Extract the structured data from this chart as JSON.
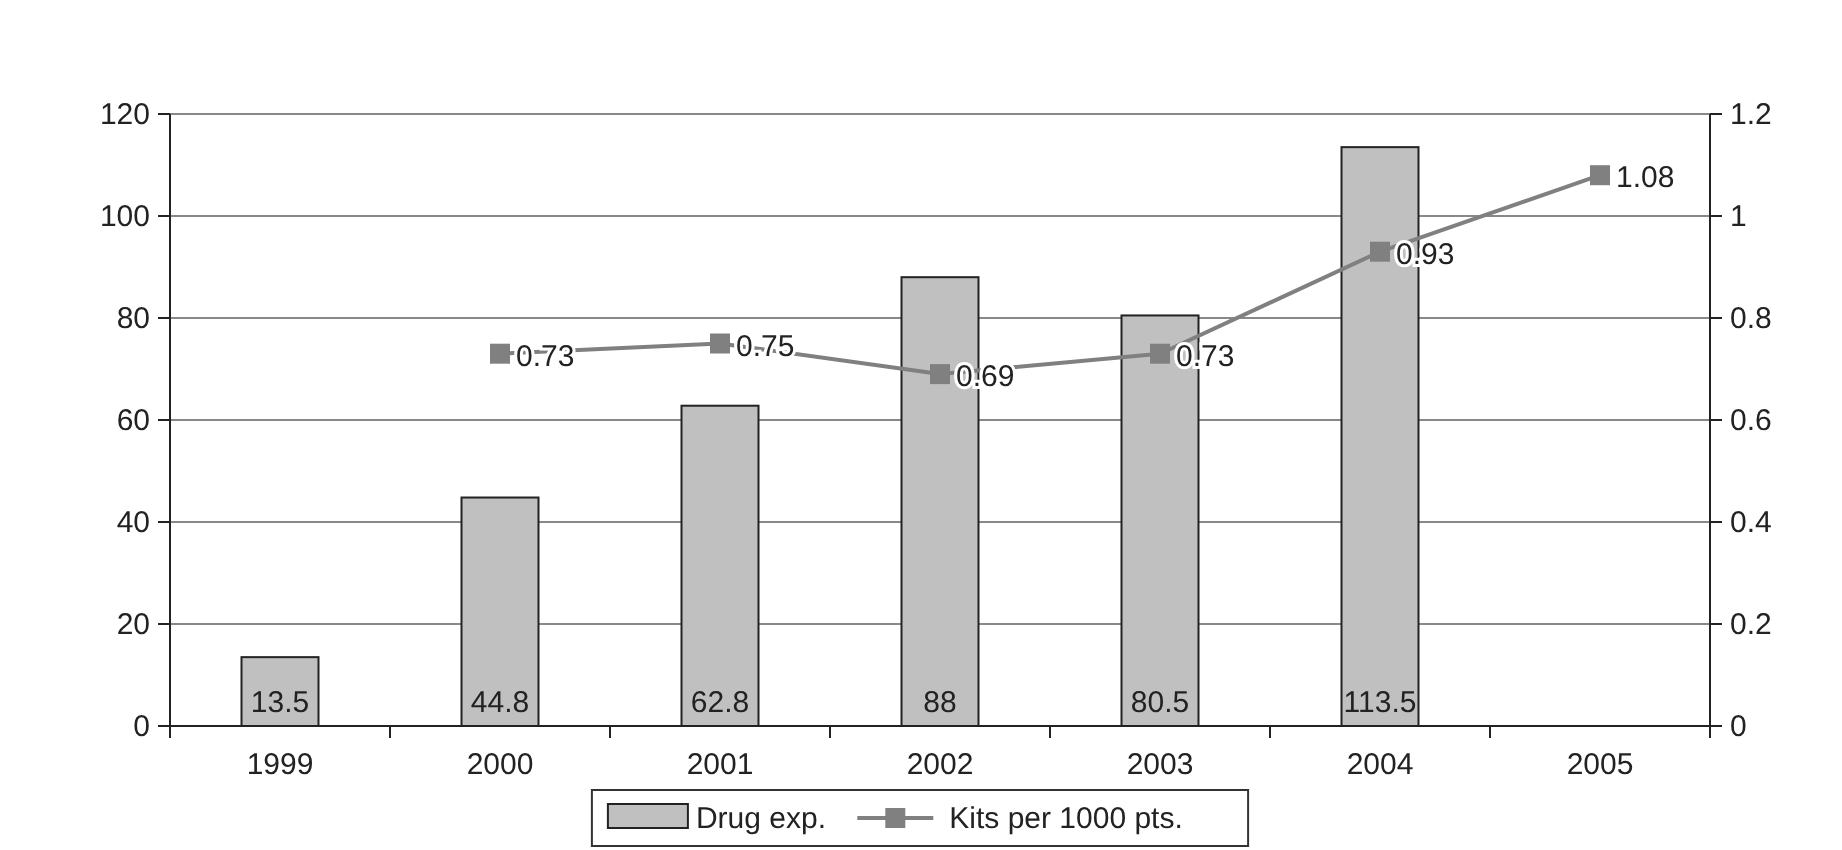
{
  "chart_data": {
    "type": "bar",
    "categories": [
      "1999",
      "2000",
      "2001",
      "2002",
      "2003",
      "2004",
      "2005"
    ],
    "series": [
      {
        "name": "Drug exp.",
        "color": "#c0c0c0",
        "values": [
          13.5,
          44.8,
          62.8,
          88,
          80.5,
          113.5,
          null
        ]
      },
      {
        "name": "Kits per 1000 pts.",
        "type": "line",
        "axis": "y2",
        "color": "#808080",
        "marker": "square",
        "values": [
          null,
          0.73,
          0.75,
          0.69,
          0.73,
          0.93,
          1.08
        ]
      }
    ],
    "ylim": [
      0,
      120
    ],
    "yticks": [
      0,
      20,
      40,
      60,
      80,
      100,
      120
    ],
    "y2lim": [
      0,
      1.2
    ],
    "y2ticks": [
      0,
      0.2,
      0.4,
      0.6,
      0.8,
      1,
      1.2
    ],
    "grid": "y",
    "legend": "bottom",
    "data_labels": true
  }
}
